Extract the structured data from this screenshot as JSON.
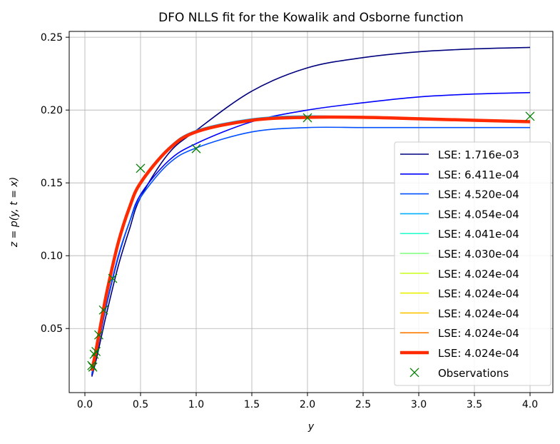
{
  "chart_data": {
    "type": "line",
    "title": "DFO NLLS fit for the Kowalik and Osborne function",
    "xlabel": "y",
    "ylabel": "z = p(y, t = x)",
    "xlim": [
      -0.141,
      4.205
    ],
    "ylim": [
      0.006,
      0.254
    ],
    "grid": true,
    "legend_position": "lower-right",
    "x_ticks": [
      "0.0",
      "0.5",
      "1.0",
      "1.5",
      "2.0",
      "2.5",
      "3.0",
      "3.5",
      "4.0"
    ],
    "x_tick_values": [
      0,
      0.5,
      1,
      1.5,
      2,
      2.5,
      3,
      3.5,
      4
    ],
    "y_ticks": [
      "0.05",
      "0.10",
      "0.15",
      "0.20",
      "0.25"
    ],
    "y_tick_values": [
      0.05,
      0.1,
      0.15,
      0.2,
      0.25
    ],
    "x": [
      0.0625,
      0.1,
      0.15,
      0.2,
      0.3,
      0.4,
      0.5,
      0.75,
      1,
      1.5,
      2,
      2.5,
      3,
      3.5,
      4
    ],
    "series": [
      {
        "name": "LSE: 1.716e-03",
        "color": "#00007f",
        "width": 1.6,
        "values": [
          0.017,
          0.028,
          0.045,
          0.062,
          0.093,
          0.118,
          0.14,
          0.17,
          0.186,
          0.213,
          0.229,
          0.236,
          0.24,
          0.242,
          0.243
        ]
      },
      {
        "name": "LSE: 6.411e-04",
        "color": "#0000ff",
        "width": 1.6,
        "values": [
          0.018,
          0.031,
          0.05,
          0.068,
          0.099,
          0.123,
          0.142,
          0.165,
          0.177,
          0.192,
          0.2,
          0.205,
          0.209,
          0.211,
          0.212
        ]
      },
      {
        "name": "LSE: 4.520e-04",
        "color": "#0050ff",
        "width": 1.6,
        "values": [
          0.019,
          0.032,
          0.051,
          0.069,
          0.1,
          0.123,
          0.14,
          0.163,
          0.174,
          0.185,
          0.188,
          0.188,
          0.188,
          0.188,
          0.188
        ]
      },
      {
        "name": "LSE: 4.054e-04",
        "color": "#00b0ff",
        "width": 1.6,
        "values": [
          0.021,
          0.036,
          0.057,
          0.077,
          0.11,
          0.134,
          0.151,
          0.174,
          0.186,
          0.194,
          0.196,
          0.195,
          0.194,
          0.193,
          0.192
        ]
      },
      {
        "name": "LSE: 4.041e-04",
        "color": "#29ffce",
        "width": 1.6,
        "values": [
          0.021,
          0.035,
          0.056,
          0.076,
          0.109,
          0.133,
          0.15,
          0.173,
          0.185,
          0.193,
          0.195,
          0.195,
          0.194,
          0.193,
          0.192
        ]
      },
      {
        "name": "LSE: 4.030e-04",
        "color": "#7dff7a",
        "width": 1.6,
        "values": [
          0.021,
          0.035,
          0.056,
          0.076,
          0.109,
          0.133,
          0.15,
          0.173,
          0.185,
          0.193,
          0.195,
          0.195,
          0.194,
          0.193,
          0.192
        ]
      },
      {
        "name": "LSE: 4.024e-04",
        "color": "#ceff29",
        "width": 1.6,
        "values": [
          0.021,
          0.035,
          0.056,
          0.076,
          0.109,
          0.133,
          0.15,
          0.173,
          0.185,
          0.193,
          0.195,
          0.195,
          0.194,
          0.193,
          0.192
        ]
      },
      {
        "name": "LSE: 4.024e-04",
        "color": "#e8f000",
        "width": 1.6,
        "values": [
          0.021,
          0.035,
          0.056,
          0.076,
          0.109,
          0.133,
          0.15,
          0.173,
          0.185,
          0.193,
          0.195,
          0.195,
          0.194,
          0.193,
          0.192
        ]
      },
      {
        "name": "LSE: 4.024e-04",
        "color": "#ffc400",
        "width": 1.6,
        "values": [
          0.021,
          0.035,
          0.056,
          0.076,
          0.109,
          0.133,
          0.15,
          0.173,
          0.185,
          0.193,
          0.195,
          0.195,
          0.194,
          0.193,
          0.192
        ]
      },
      {
        "name": "LSE: 4.024e-04",
        "color": "#ff7a00",
        "width": 1.6,
        "values": [
          0.021,
          0.035,
          0.056,
          0.076,
          0.109,
          0.133,
          0.15,
          0.173,
          0.185,
          0.193,
          0.195,
          0.195,
          0.194,
          0.193,
          0.192
        ]
      },
      {
        "name": "LSE: 4.024e-04",
        "color": "#ff2a00",
        "width": 4.5,
        "values": [
          0.021,
          0.035,
          0.056,
          0.076,
          0.109,
          0.133,
          0.15,
          0.173,
          0.185,
          0.193,
          0.195,
          0.195,
          0.194,
          0.193,
          0.192
        ]
      }
    ],
    "observations": {
      "name": "Observations",
      "color": "#008000",
      "x": [
        4,
        2,
        1,
        0.5,
        0.25,
        0.167,
        0.125,
        0.1,
        0.0833,
        0.0714,
        0.0625
      ],
      "y": [
        0.1957,
        0.1947,
        0.1735,
        0.16,
        0.0844,
        0.0627,
        0.0456,
        0.0342,
        0.0323,
        0.0235,
        0.0246
      ]
    }
  }
}
